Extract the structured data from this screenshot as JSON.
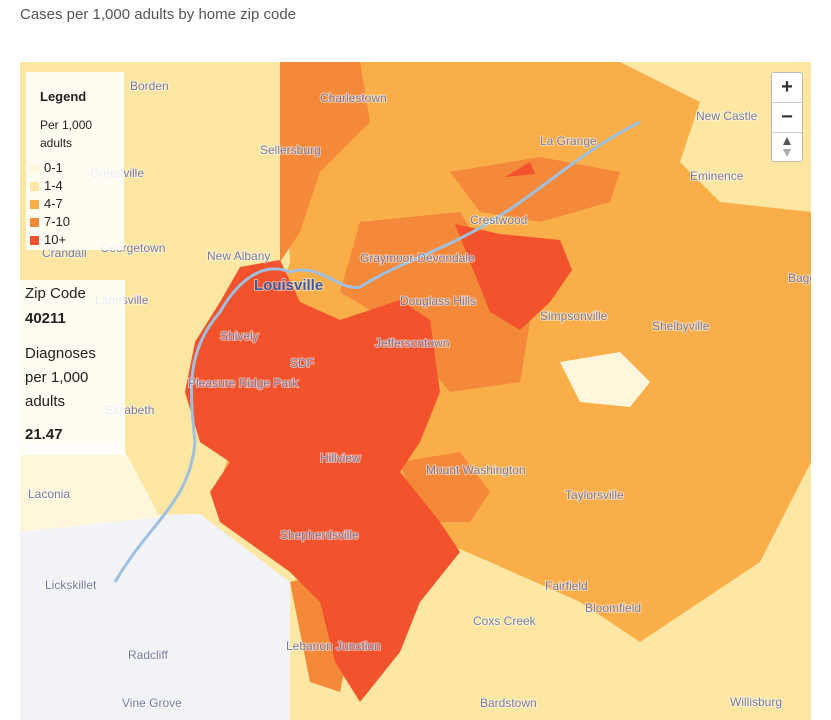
{
  "title": "Cases per 1,000 adults by home zip code",
  "legend": {
    "title": "Legend",
    "subtitle": "Per 1,000 adults",
    "items": [
      {
        "label": "0-1",
        "color": "#fff6dc"
      },
      {
        "label": "1-4",
        "color": "#fde7a3"
      },
      {
        "label": "4-7",
        "color": "#f9ae4a"
      },
      {
        "label": "7-10",
        "color": "#f5893a"
      },
      {
        "label": "10+",
        "color": "#f2522c"
      }
    ]
  },
  "info": {
    "zip_label": "Zip Code",
    "zip": "40211",
    "metric_label": "Diagnoses per 1,000 adults",
    "metric": 21.47
  },
  "controls": {
    "zoom_in": "+",
    "zoom_out": "−"
  },
  "places": [
    "Borden",
    "Charlestown",
    "Sellersburg",
    "La Grange",
    "New Castle",
    "Greenville",
    "Eminence",
    "Crestwood",
    "Georgetown",
    "New Albany",
    "Graymoor-Devondale",
    "Louisville",
    "Douglass Hills",
    "Lanesville",
    "Simpsonville",
    "Shelbyville",
    "Shively",
    "Jeffersontown",
    "SDF",
    "Pleasure Ridge Park",
    "Elizabeth",
    "Hillview",
    "Mount Washington",
    "Taylorsville",
    "Laconia",
    "Shepherdsville",
    "Lickskillet",
    "Fairfield",
    "Bloomfield",
    "Coxs Creek",
    "Radcliff",
    "Lebanon Junction",
    "Vine Grove",
    "Bardstown",
    "Willisburg",
    "Crandall",
    "Bagd"
  ]
}
